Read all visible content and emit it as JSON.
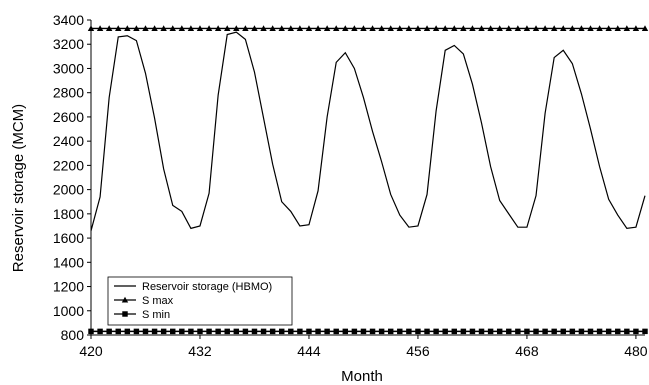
{
  "chart_data": {
    "type": "line",
    "xlabel": "Month",
    "ylabel": "Reservoir storage (MCM)",
    "xlim": [
      420,
      481
    ],
    "ylim": [
      800,
      3400
    ],
    "xticks": [
      420,
      432,
      444,
      456,
      468,
      480
    ],
    "yticks": [
      800,
      1000,
      1200,
      1400,
      1600,
      1800,
      2000,
      2200,
      2400,
      2600,
      2800,
      3000,
      3200,
      3400
    ],
    "grid": false,
    "legend_position": "bottom-left",
    "series": [
      {
        "name": "Reservoir storage (HBMO)",
        "marker": "none",
        "x": [
          420,
          421,
          422,
          423,
          424,
          425,
          426,
          427,
          428,
          429,
          430,
          431,
          432,
          433,
          434,
          435,
          436,
          437,
          438,
          439,
          440,
          441,
          442,
          443,
          444,
          445,
          446,
          447,
          448,
          449,
          450,
          451,
          452,
          453,
          454,
          455,
          456,
          457,
          458,
          459,
          460,
          461,
          462,
          463,
          464,
          465,
          466,
          467,
          468,
          469,
          470,
          471,
          472,
          473,
          474,
          475,
          476,
          477,
          478,
          479,
          480,
          481
        ],
        "y": [
          1660,
          1940,
          2760,
          3260,
          3270,
          3230,
          2960,
          2590,
          2170,
          1870,
          1820,
          1680,
          1700,
          1970,
          2780,
          3280,
          3300,
          3240,
          2970,
          2590,
          2210,
          1900,
          1820,
          1700,
          1710,
          1990,
          2600,
          3050,
          3130,
          3000,
          2760,
          2480,
          2230,
          1960,
          1790,
          1690,
          1700,
          1960,
          2650,
          3150,
          3190,
          3120,
          2870,
          2550,
          2190,
          1910,
          1800,
          1690,
          1690,
          1950,
          2630,
          3090,
          3150,
          3040,
          2790,
          2500,
          2190,
          1920,
          1790,
          1680,
          1690,
          1950
        ]
      },
      {
        "name": "S max",
        "marker": "triangle",
        "value": 3330
      },
      {
        "name": "S min",
        "marker": "square",
        "value": 830
      }
    ]
  }
}
